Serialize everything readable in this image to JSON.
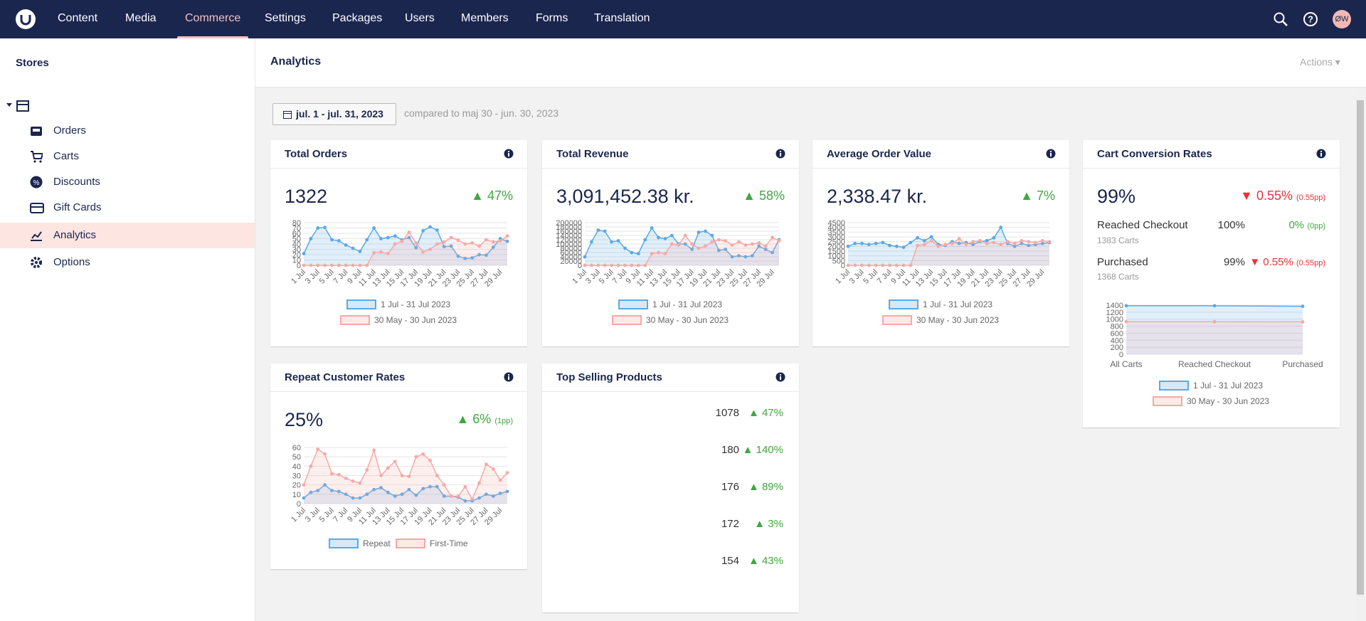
{
  "nav": {
    "items": [
      "Content",
      "Media",
      "Commerce",
      "Settings",
      "Packages",
      "Users",
      "Members",
      "Forms",
      "Translation"
    ],
    "avatar": "ØW"
  },
  "sidebar": {
    "title": "Stores",
    "items": [
      "Orders",
      "Carts",
      "Discounts",
      "Gift Cards",
      "Analytics",
      "Options"
    ]
  },
  "header": {
    "title": "Analytics",
    "actions": "Actions"
  },
  "filter": {
    "range": "jul. 1 - jul. 31, 2023",
    "compare": "compared to maj 30 - jun. 30, 2023"
  },
  "cards": [
    {
      "title": "Total Orders",
      "value": "1322",
      "change": "47%"
    },
    {
      "title": "Total Revenue",
      "value": "3,091,452.38 kr.",
      "change": "58%"
    },
    {
      "title": "Average Order Value",
      "value": "2,338.47 kr.",
      "change": "7%"
    },
    {
      "title": "Cart Conversion Rates",
      "value": "99%",
      "change": "0.55%",
      "change_pp": "(0.55pp)",
      "rows": [
        {
          "label": "Reached Checkout",
          "rate": "100%",
          "carts": "1383 Carts",
          "change": "0%",
          "change_pp": "(0pp)"
        },
        {
          "label": "Purchased",
          "rate": "99%",
          "carts": "1368 Carts",
          "change": "0.55%",
          "change_pp": "(0.55pp)"
        }
      ]
    },
    {
      "title": "Repeat Customer Rates",
      "value": "25%",
      "change": "6%",
      "change_pp": "(1pp)"
    },
    {
      "title": "Top Selling Products",
      "rows": [
        {
          "count": "1078",
          "change": "47%"
        },
        {
          "count": "180",
          "change": "140%"
        },
        {
          "count": "176",
          "change": "89%"
        },
        {
          "count": "172",
          "change": "3%"
        },
        {
          "count": "154",
          "change": "43%"
        }
      ]
    }
  ],
  "chart_data": [
    {
      "type": "line",
      "categories": [
        "1 Jul",
        null,
        "3 Jul",
        null,
        "5 Jul",
        null,
        "7 Jul",
        null,
        "9 Jul",
        null,
        "11 Jul",
        null,
        "13 Jul",
        null,
        "15 Jul",
        null,
        "17 Jul",
        null,
        "19 Jul",
        null,
        "21 Jul",
        null,
        "23 Jul",
        null,
        "25 Jul",
        null,
        "27 Jul",
        null,
        "29 Jul",
        null
      ],
      "ylim": [
        0,
        80
      ],
      "yticks": [
        0,
        10,
        20,
        30,
        40,
        50,
        60,
        70,
        80
      ],
      "grid": true,
      "series": [
        {
          "name": "1 Jul - 31 Jul 2023",
          "color": "#5aa9e6",
          "values": [
            22,
            50,
            70,
            71,
            48,
            46,
            38,
            32,
            26,
            48,
            70,
            50,
            52,
            55,
            48,
            52,
            33,
            65,
            72,
            66,
            35,
            36,
            17,
            13,
            14,
            20,
            19,
            34,
            50,
            45
          ]
        },
        {
          "name": "30 May - 30 Jun 2023",
          "color": "#f7a9a4",
          "values": [
            0,
            0,
            0,
            0,
            0,
            0,
            0,
            0,
            0,
            0,
            24,
            25,
            22,
            40,
            45,
            62,
            42,
            25,
            30,
            40,
            44,
            52,
            47,
            40,
            42,
            36,
            48,
            44,
            46,
            55
          ]
        }
      ]
    },
    {
      "type": "line",
      "categories": [
        "1 Jul",
        null,
        "3 Jul",
        null,
        "5 Jul",
        null,
        "7 Jul",
        null,
        "9 Jul",
        null,
        "11 Jul",
        null,
        "13 Jul",
        null,
        "15 Jul",
        null,
        "17 Jul",
        null,
        "19 Jul",
        null,
        "21 Jul",
        null,
        "23 Jul",
        null,
        "25 Jul",
        null,
        "27 Jul",
        null,
        "29 Jul",
        null
      ],
      "ylim": [
        0,
        200000
      ],
      "yticks": [
        0,
        20000,
        40000,
        60000,
        80000,
        100000,
        120000,
        140000,
        160000,
        180000,
        200000
      ],
      "grid": true,
      "series": [
        {
          "name": "1 Jul - 31 Jul 2023",
          "color": "#5aa9e6",
          "values": [
            40000,
            110000,
            165000,
            160000,
            110000,
            115000,
            80000,
            60000,
            55000,
            120000,
            175000,
            130000,
            125000,
            140000,
            100000,
            100000,
            75000,
            155000,
            160000,
            140000,
            70000,
            75000,
            40000,
            45000,
            40000,
            45000,
            90000,
            75000,
            60000,
            120000
          ]
        },
        {
          "name": "30 May - 30 Jun 2023",
          "color": "#f7a9a4",
          "values": [
            0,
            0,
            0,
            0,
            0,
            0,
            0,
            0,
            0,
            0,
            55000,
            60000,
            55000,
            100000,
            95000,
            140000,
            100000,
            80000,
            90000,
            110000,
            120000,
            115000,
            95000,
            110000,
            95000,
            100000,
            105000,
            90000,
            130000,
            115000
          ]
        }
      ]
    },
    {
      "type": "line",
      "categories": [
        "1 Jul",
        null,
        "3 Jul",
        null,
        "5 Jul",
        null,
        "7 Jul",
        null,
        "9 Jul",
        null,
        "11 Jul",
        null,
        "13 Jul",
        null,
        "15 Jul",
        null,
        "17 Jul",
        null,
        "19 Jul",
        null,
        "21 Jul",
        null,
        "23 Jul",
        null,
        "25 Jul",
        null,
        "27 Jul",
        null,
        "29 Jul",
        null
      ],
      "ylim": [
        0,
        4500
      ],
      "yticks": [
        0,
        500,
        1000,
        1500,
        2000,
        2500,
        3000,
        3500,
        4000,
        4500
      ],
      "grid": true,
      "series": [
        {
          "name": "1 Jul - 31 Jul 2023",
          "color": "#5aa9e6",
          "values": [
            2000,
            2300,
            2300,
            2200,
            2300,
            2400,
            2100,
            2000,
            1900,
            2400,
            2900,
            2600,
            3000,
            2200,
            2100,
            2500,
            2300,
            2400,
            2200,
            2500,
            2600,
            2900,
            4000,
            2300,
            2000,
            2300,
            2100,
            2200,
            2300,
            2400
          ]
        },
        {
          "name": "30 May - 30 Jun 2023",
          "color": "#f7a9a4",
          "values": [
            0,
            0,
            0,
            0,
            0,
            0,
            0,
            0,
            0,
            0,
            2100,
            2200,
            2600,
            2000,
            2200,
            2300,
            2800,
            2200,
            2500,
            2600,
            2300,
            2400,
            2200,
            2500,
            2300,
            2600,
            2500,
            2400,
            2600,
            2500
          ]
        }
      ]
    },
    {
      "type": "line",
      "categories": [
        "All Carts",
        "Reached Checkout",
        "Purchased"
      ],
      "ylim": [
        0,
        1400
      ],
      "yticks": [
        0,
        200,
        400,
        600,
        800,
        1000,
        1200,
        1400
      ],
      "grid": true,
      "series": [
        {
          "name": "1 Jul - 31 Jul 2023",
          "color": "#5aa9e6",
          "values": [
            1383,
            1383,
            1368
          ]
        },
        {
          "name": "30 May - 30 Jun 2023",
          "color": "#f7a9a4",
          "values": [
            930,
            930,
            925
          ]
        }
      ]
    },
    {
      "type": "line",
      "categories": [
        "1 Jul",
        null,
        "3 Jul",
        null,
        "5 Jul",
        null,
        "7 Jul",
        null,
        "9 Jul",
        null,
        "11 Jul",
        null,
        "13 Jul",
        null,
        "15 Jul",
        null,
        "17 Jul",
        null,
        "19 Jul",
        null,
        "21 Jul",
        null,
        "23 Jul",
        null,
        "25 Jul",
        null,
        "27 Jul",
        null,
        "29 Jul",
        null
      ],
      "ylim": [
        0,
        60
      ],
      "yticks": [
        0,
        10,
        20,
        30,
        40,
        50,
        60
      ],
      "grid": true,
      "series": [
        {
          "name": "Repeat",
          "color": "#5aa9e6",
          "values": [
            6,
            12,
            14,
            20,
            14,
            13,
            10,
            6,
            6,
            10,
            15,
            17,
            12,
            8,
            10,
            15,
            9,
            16,
            18,
            18,
            8,
            8,
            7,
            3,
            3,
            6,
            10,
            8,
            11,
            13
          ]
        },
        {
          "name": "First-Time",
          "color": "#f7a9a4",
          "values": [
            20,
            40,
            58,
            53,
            32,
            31,
            27,
            24,
            22,
            36,
            57,
            30,
            38,
            45,
            30,
            29,
            50,
            53,
            46,
            30,
            20,
            8,
            8,
            18,
            5,
            22,
            42,
            37,
            25,
            33
          ]
        }
      ]
    }
  ]
}
